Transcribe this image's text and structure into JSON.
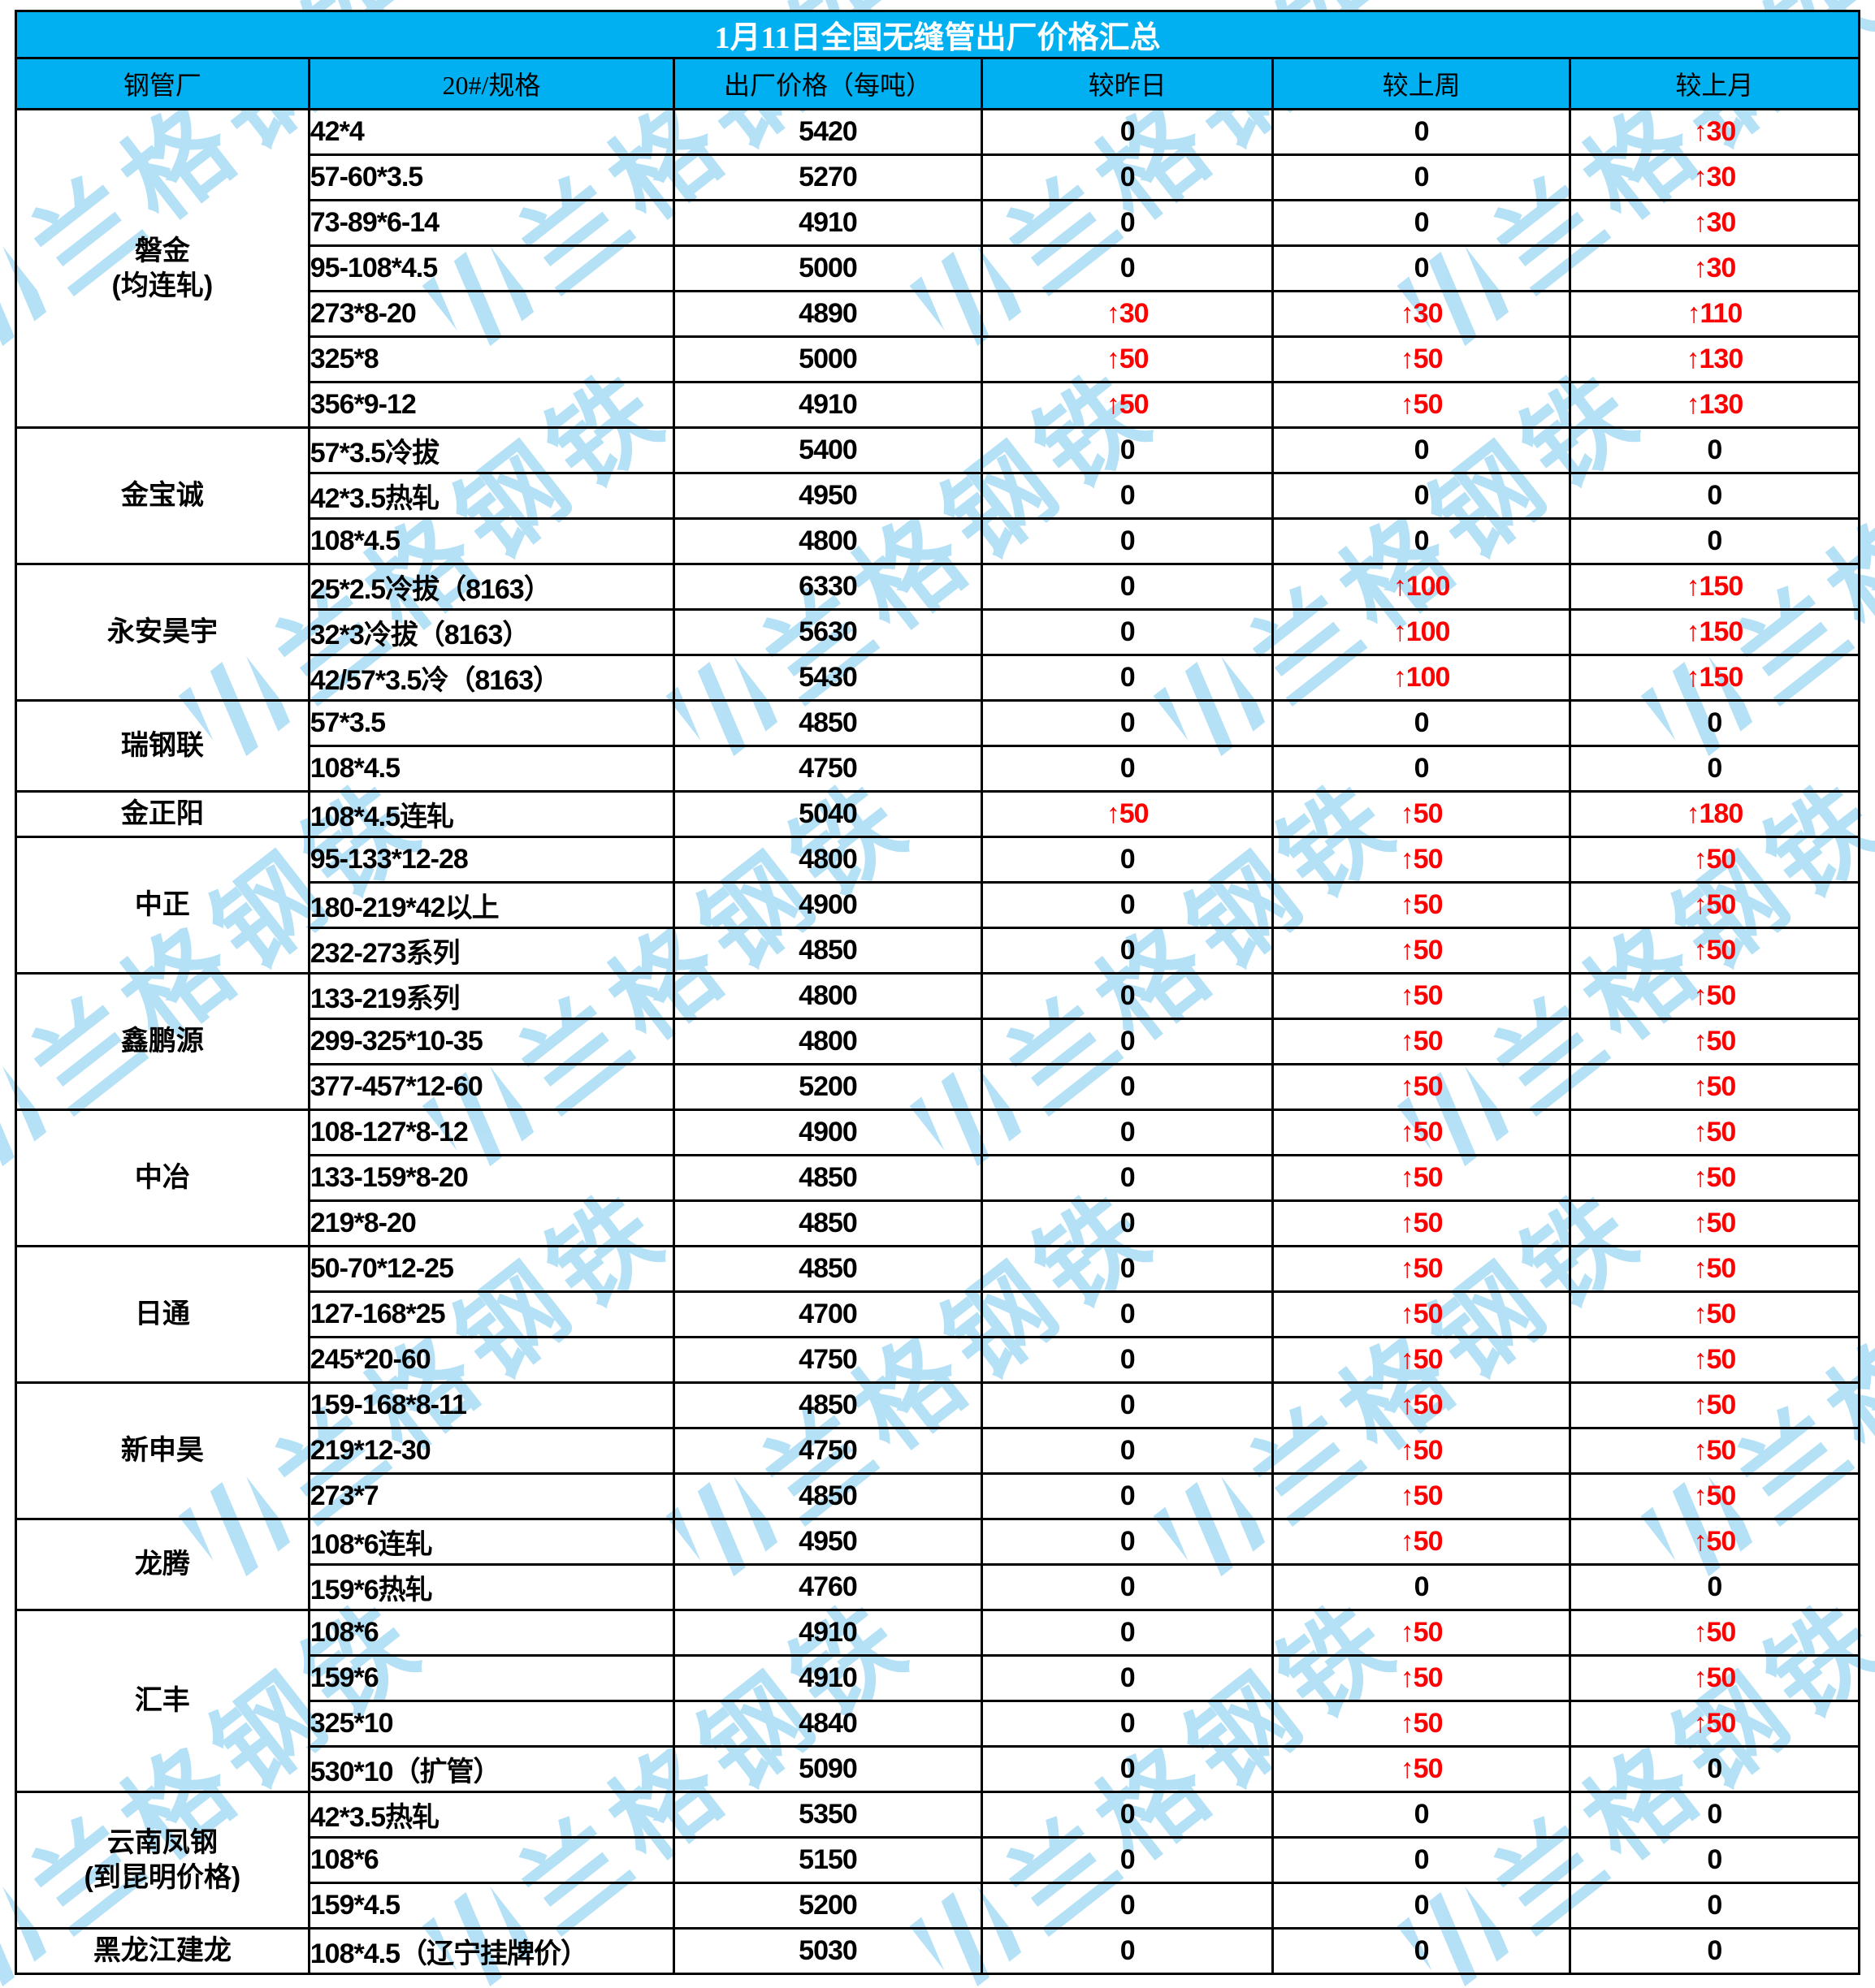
{
  "title": "1月11日全国无缝管出厂价格汇总",
  "columns": [
    "钢管厂",
    "20#/规格",
    "出厂价格（每吨）",
    "较昨日",
    "较上周",
    "较上月"
  ],
  "watermark": {
    "text": "兰格钢铁"
  },
  "colors": {
    "header_bg": "#00B0F0",
    "title_text": "#FFFFFF",
    "header_text": "#000000",
    "up_red": "#FF0000",
    "text_black": "#000000",
    "watermark_blue": "#A9DCF6",
    "border": "#000000"
  },
  "groups": [
    {
      "factory": [
        "磐金",
        "(均连轧)"
      ],
      "rows": [
        {
          "spec": "42*4",
          "price": "5420",
          "d": "0",
          "w": "0",
          "m": "↑30"
        },
        {
          "spec": "57-60*3.5",
          "price": "5270",
          "d": "0",
          "w": "0",
          "m": "↑30"
        },
        {
          "spec": "73-89*6-14",
          "price": "4910",
          "d": "0",
          "w": "0",
          "m": "↑30"
        },
        {
          "spec": "95-108*4.5",
          "price": "5000",
          "d": "0",
          "w": "0",
          "m": "↑30"
        },
        {
          "spec": "273*8-20",
          "price": "4890",
          "d": "↑30",
          "w": "↑30",
          "m": "↑110"
        },
        {
          "spec": "325*8",
          "price": "5000",
          "d": "↑50",
          "w": "↑50",
          "m": "↑130"
        },
        {
          "spec": "356*9-12",
          "price": "4910",
          "d": "↑50",
          "w": "↑50",
          "m": "↑130"
        }
      ]
    },
    {
      "factory": [
        "金宝诚"
      ],
      "rows": [
        {
          "spec": "57*3.5冷拔",
          "price": "5400",
          "d": "0",
          "w": "0",
          "m": "0"
        },
        {
          "spec": "42*3.5热轧",
          "price": "4950",
          "d": "0",
          "w": "0",
          "m": "0"
        },
        {
          "spec": "108*4.5",
          "price": "4800",
          "d": "0",
          "w": "0",
          "m": "0"
        }
      ]
    },
    {
      "factory": [
        "永安昊宇"
      ],
      "rows": [
        {
          "spec": "25*2.5冷拔（8163）",
          "price": "6330",
          "d": "0",
          "w": "↑100",
          "m": "↑150"
        },
        {
          "spec": "32*3冷拔（8163）",
          "price": "5630",
          "d": "0",
          "w": "↑100",
          "m": "↑150"
        },
        {
          "spec": "42/57*3.5冷（8163）",
          "price": "5430",
          "d": "0",
          "w": "↑100",
          "m": "↑150"
        }
      ]
    },
    {
      "factory": [
        "瑞钢联"
      ],
      "rows": [
        {
          "spec": "57*3.5",
          "price": "4850",
          "d": "0",
          "w": "0",
          "m": "0"
        },
        {
          "spec": "108*4.5",
          "price": "4750",
          "d": "0",
          "w": "0",
          "m": "0"
        }
      ]
    },
    {
      "factory": [
        "金正阳"
      ],
      "rows": [
        {
          "spec": "108*4.5连轧",
          "price": "5040",
          "d": "↑50",
          "w": "↑50",
          "m": "↑180"
        }
      ]
    },
    {
      "factory": [
        "中正"
      ],
      "rows": [
        {
          "spec": "95-133*12-28",
          "price": "4800",
          "d": "0",
          "w": "↑50",
          "m": "↑50"
        },
        {
          "spec": "180-219*42以上",
          "price": "4900",
          "d": "0",
          "w": "↑50",
          "m": "↑50"
        },
        {
          "spec": "232-273系列",
          "price": "4850",
          "d": "0",
          "w": "↑50",
          "m": "↑50"
        }
      ]
    },
    {
      "factory": [
        "鑫鹏源"
      ],
      "rows": [
        {
          "spec": "133-219系列",
          "price": "4800",
          "d": "0",
          "w": "↑50",
          "m": "↑50"
        },
        {
          "spec": "299-325*10-35",
          "price": "4800",
          "d": "0",
          "w": "↑50",
          "m": "↑50"
        },
        {
          "spec": "377-457*12-60",
          "price": "5200",
          "d": "0",
          "w": "↑50",
          "m": "↑50"
        }
      ]
    },
    {
      "factory": [
        "中冶"
      ],
      "rows": [
        {
          "spec": "108-127*8-12",
          "price": "4900",
          "d": "0",
          "w": "↑50",
          "m": "↑50"
        },
        {
          "spec": "133-159*8-20",
          "price": "4850",
          "d": "0",
          "w": "↑50",
          "m": "↑50"
        },
        {
          "spec": "219*8-20",
          "price": "4850",
          "d": "0",
          "w": "↑50",
          "m": "↑50"
        }
      ]
    },
    {
      "factory": [
        "日通"
      ],
      "rows": [
        {
          "spec": "50-70*12-25",
          "price": "4850",
          "d": "0",
          "w": "↑50",
          "m": "↑50"
        },
        {
          "spec": "127-168*25",
          "price": "4700",
          "d": "0",
          "w": "↑50",
          "m": "↑50"
        },
        {
          "spec": "245*20-60",
          "price": "4750",
          "d": "0",
          "w": "↑50",
          "m": "↑50"
        }
      ]
    },
    {
      "factory": [
        "新申昊"
      ],
      "rows": [
        {
          "spec": "159-168*8-11",
          "price": "4850",
          "d": "0",
          "w": "↑50",
          "m": "↑50"
        },
        {
          "spec": "219*12-30",
          "price": "4750",
          "d": "0",
          "w": "↑50",
          "m": "↑50"
        },
        {
          "spec": "273*7",
          "price": "4850",
          "d": "0",
          "w": "↑50",
          "m": "↑50"
        }
      ]
    },
    {
      "factory": [
        "龙腾"
      ],
      "rows": [
        {
          "spec": "108*6连轧",
          "price": "4950",
          "d": "0",
          "w": "↑50",
          "m": "↑50"
        },
        {
          "spec": "159*6热轧",
          "price": "4760",
          "d": "0",
          "w": "0",
          "m": "0"
        }
      ]
    },
    {
      "factory": [
        "汇丰"
      ],
      "rows": [
        {
          "spec": "108*6",
          "price": "4910",
          "d": "0",
          "w": "↑50",
          "m": "↑50"
        },
        {
          "spec": "159*6",
          "price": "4910",
          "d": "0",
          "w": "↑50",
          "m": "↑50"
        },
        {
          "spec": "325*10",
          "price": "4840",
          "d": "0",
          "w": "↑50",
          "m": "↑50"
        },
        {
          "spec": "530*10（扩管）",
          "price": "5090",
          "d": "0",
          "w": "↑50",
          "m": "0"
        }
      ]
    },
    {
      "factory": [
        "云南凤钢",
        "(到昆明价格)"
      ],
      "rows": [
        {
          "spec": "42*3.5热轧",
          "price": "5350",
          "d": "0",
          "w": "0",
          "m": "0"
        },
        {
          "spec": "108*6",
          "price": "5150",
          "d": "0",
          "w": "0",
          "m": "0"
        },
        {
          "spec": "159*4.5",
          "price": "5200",
          "d": "0",
          "w": "0",
          "m": "0"
        }
      ]
    },
    {
      "factory": [
        "黑龙江建龙"
      ],
      "rows": [
        {
          "spec": "108*4.5（辽宁挂牌价）",
          "price": "5030",
          "d": "0",
          "w": "0",
          "m": "0"
        }
      ]
    }
  ]
}
